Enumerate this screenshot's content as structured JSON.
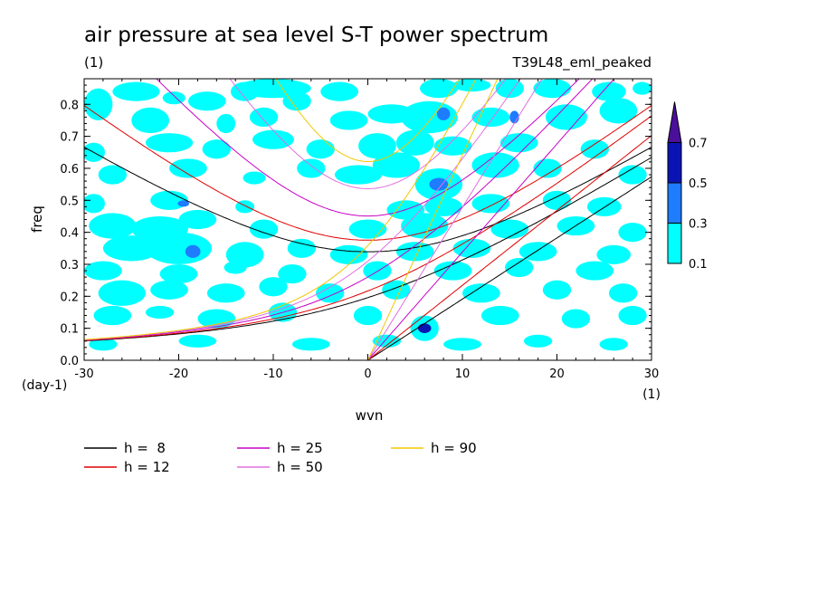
{
  "chart_data": {
    "type": "contour",
    "title": "air pressure at sea level S-T power spectrum",
    "subtitle_left": "(1)",
    "subtitle_right": "T39L48_eml_peaked",
    "xlabel": "wvn",
    "ylabel": "freq",
    "x_unit": "(1)",
    "y_unit": "(day-1)",
    "xlim": [
      -30,
      30
    ],
    "ylim": [
      0,
      0.88
    ],
    "x_ticks": [
      -30,
      -20,
      -10,
      0,
      10,
      20,
      30
    ],
    "x_tick_labels": [
      "-30",
      "-20",
      "-10",
      "0",
      "10",
      "20",
      "30"
    ],
    "y_ticks": [
      0,
      0.1,
      0.2,
      0.3,
      0.4,
      0.5,
      0.6,
      0.7,
      0.8
    ],
    "y_tick_labels": [
      "0.0",
      "0.1",
      "0.2",
      "0.3",
      "0.4",
      "0.5",
      "0.6",
      "0.7",
      "0.8"
    ],
    "colorbar": {
      "levels": [
        0.1,
        0.3,
        0.5,
        0.7
      ],
      "labels": [
        "0.1",
        "0.3",
        "0.5",
        "0.7"
      ],
      "colors": [
        "#00ffff",
        "#1e7cff",
        "#0a14b4",
        "#4b0f9b"
      ],
      "extend": "max"
    },
    "dispersion_curves": [
      {
        "label": "h =  8",
        "color": "#000000",
        "h": 8
      },
      {
        "label": "h = 12",
        "color": "#e00000",
        "h": 12
      },
      {
        "label": "h = 25",
        "color": "#c800c8",
        "h": 25
      },
      {
        "label": "h = 50",
        "color": "#e070e0",
        "h": 50
      },
      {
        "label": "h = 90",
        "color": "#f0c800",
        "h": 90
      }
    ],
    "blobs": [
      {
        "x": -28.5,
        "y": 0.8,
        "w": 1.5,
        "h": 0.05,
        "level": 0
      },
      {
        "x": -24.5,
        "y": 0.84,
        "w": 2.5,
        "h": 0.03,
        "level": 0
      },
      {
        "x": -20.5,
        "y": 0.82,
        "w": 1.2,
        "h": 0.02,
        "level": 0
      },
      {
        "x": -17,
        "y": 0.81,
        "w": 2,
        "h": 0.03,
        "level": 0
      },
      {
        "x": -13,
        "y": 0.84,
        "w": 1.5,
        "h": 0.03,
        "level": 0
      },
      {
        "x": -10,
        "y": 0.85,
        "w": 4,
        "h": 0.03,
        "level": 0
      },
      {
        "x": -7.5,
        "y": 0.81,
        "w": 1.5,
        "h": 0.03,
        "level": 0
      },
      {
        "x": -3,
        "y": 0.84,
        "w": 2,
        "h": 0.03,
        "level": 0
      },
      {
        "x": 7.5,
        "y": 0.85,
        "w": 2,
        "h": 0.03,
        "level": 0
      },
      {
        "x": 11,
        "y": 0.86,
        "w": 2,
        "h": 0.02,
        "level": 0
      },
      {
        "x": 15,
        "y": 0.85,
        "w": 1.5,
        "h": 0.03,
        "level": 0
      },
      {
        "x": 19.5,
        "y": 0.85,
        "w": 2,
        "h": 0.03,
        "level": 0
      },
      {
        "x": 25.5,
        "y": 0.84,
        "w": 1.8,
        "h": 0.03,
        "level": 0
      },
      {
        "x": 29,
        "y": 0.85,
        "w": 1,
        "h": 0.02,
        "level": 0
      },
      {
        "x": -23,
        "y": 0.75,
        "w": 2,
        "h": 0.04,
        "level": 0
      },
      {
        "x": -15,
        "y": 0.74,
        "w": 1,
        "h": 0.03,
        "level": 0
      },
      {
        "x": -11,
        "y": 0.76,
        "w": 1.5,
        "h": 0.03,
        "level": 0
      },
      {
        "x": -2,
        "y": 0.75,
        "w": 2,
        "h": 0.03,
        "level": 0
      },
      {
        "x": 2.5,
        "y": 0.77,
        "w": 2.5,
        "h": 0.03,
        "level": 0
      },
      {
        "x": 6.5,
        "y": 0.76,
        "w": 3,
        "h": 0.05,
        "level": 0
      },
      {
        "x": 8,
        "y": 0.77,
        "w": 0.7,
        "h": 0.02,
        "level": 1
      },
      {
        "x": 13,
        "y": 0.76,
        "w": 2,
        "h": 0.03,
        "level": 0
      },
      {
        "x": 15.5,
        "y": 0.76,
        "w": 0.5,
        "h": 0.02,
        "level": 1
      },
      {
        "x": 21,
        "y": 0.76,
        "w": 2.2,
        "h": 0.04,
        "level": 0
      },
      {
        "x": 26.5,
        "y": 0.78,
        "w": 2,
        "h": 0.04,
        "level": 0
      },
      {
        "x": -29,
        "y": 0.65,
        "w": 1.2,
        "h": 0.03,
        "level": 0
      },
      {
        "x": -21,
        "y": 0.68,
        "w": 2.5,
        "h": 0.03,
        "level": 0
      },
      {
        "x": -16,
        "y": 0.66,
        "w": 1.5,
        "h": 0.03,
        "level": 0
      },
      {
        "x": -10,
        "y": 0.69,
        "w": 2.2,
        "h": 0.03,
        "level": 0
      },
      {
        "x": -5,
        "y": 0.66,
        "w": 1.5,
        "h": 0.03,
        "level": 0
      },
      {
        "x": 1,
        "y": 0.67,
        "w": 2,
        "h": 0.04,
        "level": 0
      },
      {
        "x": 5,
        "y": 0.68,
        "w": 2,
        "h": 0.04,
        "level": 0
      },
      {
        "x": 9,
        "y": 0.67,
        "w": 2,
        "h": 0.03,
        "level": 0
      },
      {
        "x": 16,
        "y": 0.68,
        "w": 2,
        "h": 0.03,
        "level": 0
      },
      {
        "x": 24,
        "y": 0.66,
        "w": 1.5,
        "h": 0.03,
        "level": 0
      },
      {
        "x": -27,
        "y": 0.58,
        "w": 1.5,
        "h": 0.03,
        "level": 0
      },
      {
        "x": -19,
        "y": 0.6,
        "w": 2,
        "h": 0.03,
        "level": 0
      },
      {
        "x": -12,
        "y": 0.57,
        "w": 1.2,
        "h": 0.02,
        "level": 0
      },
      {
        "x": -6,
        "y": 0.6,
        "w": 1.5,
        "h": 0.03,
        "level": 0
      },
      {
        "x": -1,
        "y": 0.58,
        "w": 2.5,
        "h": 0.03,
        "level": 0
      },
      {
        "x": 3,
        "y": 0.61,
        "w": 2.5,
        "h": 0.04,
        "level": 0
      },
      {
        "x": 7.5,
        "y": 0.55,
        "w": 2.5,
        "h": 0.05,
        "level": 0
      },
      {
        "x": 7.5,
        "y": 0.55,
        "w": 1,
        "h": 0.02,
        "level": 1
      },
      {
        "x": 13.5,
        "y": 0.61,
        "w": 2.5,
        "h": 0.04,
        "level": 0
      },
      {
        "x": 19,
        "y": 0.6,
        "w": 1.5,
        "h": 0.03,
        "level": 0
      },
      {
        "x": 28,
        "y": 0.58,
        "w": 1.5,
        "h": 0.03,
        "level": 0
      },
      {
        "x": -29,
        "y": 0.49,
        "w": 1.2,
        "h": 0.03,
        "level": 0
      },
      {
        "x": -21,
        "y": 0.5,
        "w": 2,
        "h": 0.03,
        "level": 0
      },
      {
        "x": -19.5,
        "y": 0.49,
        "w": 0.6,
        "h": 0.01,
        "level": 1
      },
      {
        "x": -13,
        "y": 0.48,
        "w": 1,
        "h": 0.02,
        "level": 0
      },
      {
        "x": 4,
        "y": 0.47,
        "w": 2,
        "h": 0.03,
        "level": 0
      },
      {
        "x": 8,
        "y": 0.48,
        "w": 2,
        "h": 0.03,
        "level": 0
      },
      {
        "x": 13,
        "y": 0.49,
        "w": 2,
        "h": 0.03,
        "level": 0
      },
      {
        "x": 20,
        "y": 0.5,
        "w": 1.5,
        "h": 0.03,
        "level": 0
      },
      {
        "x": 25,
        "y": 0.48,
        "w": 1.8,
        "h": 0.03,
        "level": 0
      },
      {
        "x": -27,
        "y": 0.42,
        "w": 2.5,
        "h": 0.04,
        "level": 0
      },
      {
        "x": -22,
        "y": 0.41,
        "w": 3,
        "h": 0.04,
        "level": 0
      },
      {
        "x": -18,
        "y": 0.44,
        "w": 2,
        "h": 0.03,
        "level": 0
      },
      {
        "x": -11,
        "y": 0.41,
        "w": 1.5,
        "h": 0.03,
        "level": 0
      },
      {
        "x": 0,
        "y": 0.41,
        "w": 2,
        "h": 0.03,
        "level": 0
      },
      {
        "x": 6,
        "y": 0.42,
        "w": 2.5,
        "h": 0.04,
        "level": 0
      },
      {
        "x": 15,
        "y": 0.41,
        "w": 2,
        "h": 0.03,
        "level": 0
      },
      {
        "x": 22,
        "y": 0.42,
        "w": 2,
        "h": 0.03,
        "level": 0
      },
      {
        "x": 28,
        "y": 0.4,
        "w": 1.5,
        "h": 0.03,
        "level": 0
      },
      {
        "x": -25,
        "y": 0.35,
        "w": 3,
        "h": 0.04,
        "level": 0
      },
      {
        "x": -20,
        "y": 0.35,
        "w": 3.5,
        "h": 0.05,
        "level": 0
      },
      {
        "x": -18.5,
        "y": 0.34,
        "w": 0.8,
        "h": 0.02,
        "level": 1
      },
      {
        "x": -13,
        "y": 0.33,
        "w": 2,
        "h": 0.04,
        "level": 0
      },
      {
        "x": -7,
        "y": 0.35,
        "w": 1.5,
        "h": 0.03,
        "level": 0
      },
      {
        "x": -2,
        "y": 0.33,
        "w": 2,
        "h": 0.03,
        "level": 0
      },
      {
        "x": 5,
        "y": 0.34,
        "w": 2,
        "h": 0.03,
        "level": 0
      },
      {
        "x": 11,
        "y": 0.35,
        "w": 2,
        "h": 0.03,
        "level": 0
      },
      {
        "x": 18,
        "y": 0.34,
        "w": 2,
        "h": 0.03,
        "level": 0
      },
      {
        "x": 26,
        "y": 0.33,
        "w": 1.8,
        "h": 0.03,
        "level": 0
      },
      {
        "x": -28,
        "y": 0.28,
        "w": 2,
        "h": 0.03,
        "level": 0
      },
      {
        "x": -20,
        "y": 0.27,
        "w": 2,
        "h": 0.03,
        "level": 0
      },
      {
        "x": -14,
        "y": 0.29,
        "w": 1.2,
        "h": 0.02,
        "level": 0
      },
      {
        "x": -8,
        "y": 0.27,
        "w": 1.5,
        "h": 0.03,
        "level": 0
      },
      {
        "x": 1,
        "y": 0.28,
        "w": 1.5,
        "h": 0.03,
        "level": 0
      },
      {
        "x": 9,
        "y": 0.28,
        "w": 2,
        "h": 0.03,
        "level": 0
      },
      {
        "x": 16,
        "y": 0.29,
        "w": 1.5,
        "h": 0.03,
        "level": 0
      },
      {
        "x": 24,
        "y": 0.28,
        "w": 2,
        "h": 0.03,
        "level": 0
      },
      {
        "x": -26,
        "y": 0.21,
        "w": 2.5,
        "h": 0.04,
        "level": 0
      },
      {
        "x": -21,
        "y": 0.22,
        "w": 2,
        "h": 0.03,
        "level": 0
      },
      {
        "x": -15,
        "y": 0.21,
        "w": 2,
        "h": 0.03,
        "level": 0
      },
      {
        "x": -10,
        "y": 0.23,
        "w": 1.5,
        "h": 0.03,
        "level": 0
      },
      {
        "x": -4,
        "y": 0.21,
        "w": 1.5,
        "h": 0.03,
        "level": 0
      },
      {
        "x": 3,
        "y": 0.22,
        "w": 1.5,
        "h": 0.03,
        "level": 0
      },
      {
        "x": 12,
        "y": 0.21,
        "w": 2,
        "h": 0.03,
        "level": 0
      },
      {
        "x": 20,
        "y": 0.22,
        "w": 1.5,
        "h": 0.03,
        "level": 0
      },
      {
        "x": 27,
        "y": 0.21,
        "w": 1.5,
        "h": 0.03,
        "level": 0
      },
      {
        "x": -27,
        "y": 0.14,
        "w": 2,
        "h": 0.03,
        "level": 0
      },
      {
        "x": -22,
        "y": 0.15,
        "w": 1.5,
        "h": 0.02,
        "level": 0
      },
      {
        "x": -16,
        "y": 0.13,
        "w": 2,
        "h": 0.03,
        "level": 0
      },
      {
        "x": -9,
        "y": 0.15,
        "w": 1.5,
        "h": 0.03,
        "level": 0
      },
      {
        "x": 0,
        "y": 0.14,
        "w": 1.5,
        "h": 0.03,
        "level": 0
      },
      {
        "x": 6,
        "y": 0.1,
        "w": 1.5,
        "h": 0.04,
        "level": 0
      },
      {
        "x": 6,
        "y": 0.1,
        "w": 0.7,
        "h": 0.015,
        "level": 2
      },
      {
        "x": 14,
        "y": 0.14,
        "w": 2,
        "h": 0.03,
        "level": 0
      },
      {
        "x": 22,
        "y": 0.13,
        "w": 1.5,
        "h": 0.03,
        "level": 0
      },
      {
        "x": 28,
        "y": 0.14,
        "w": 1.5,
        "h": 0.03,
        "level": 0
      },
      {
        "x": -28,
        "y": 0.05,
        "w": 1.5,
        "h": 0.02,
        "level": 0
      },
      {
        "x": -18,
        "y": 0.06,
        "w": 2,
        "h": 0.02,
        "level": 0
      },
      {
        "x": -6,
        "y": 0.05,
        "w": 2,
        "h": 0.02,
        "level": 0
      },
      {
        "x": 2,
        "y": 0.06,
        "w": 1.5,
        "h": 0.02,
        "level": 0
      },
      {
        "x": 10,
        "y": 0.05,
        "w": 2,
        "h": 0.02,
        "level": 0
      },
      {
        "x": 18,
        "y": 0.06,
        "w": 1.5,
        "h": 0.02,
        "level": 0
      },
      {
        "x": 26,
        "y": 0.05,
        "w": 1.5,
        "h": 0.02,
        "level": 0
      }
    ]
  }
}
